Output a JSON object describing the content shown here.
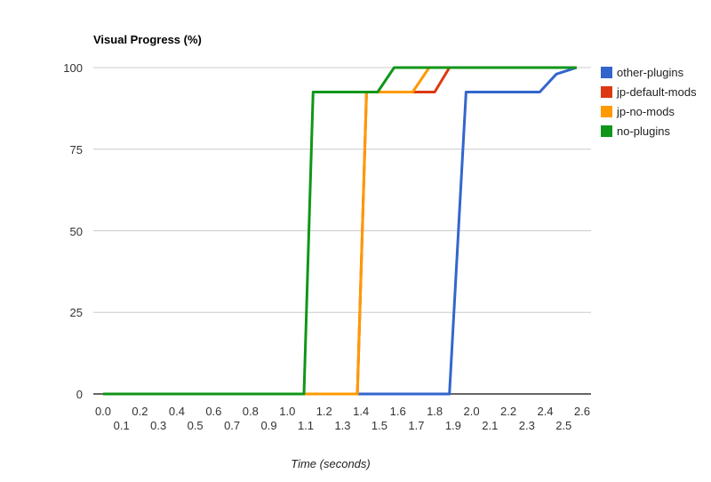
{
  "chart_data": {
    "type": "line",
    "title": "Visual Progress (%)",
    "xlabel": "Time (seconds)",
    "ylabel": "",
    "xlim": [
      0,
      2.6
    ],
    "ylim": [
      0,
      100
    ],
    "yticks": [
      0,
      25,
      50,
      75,
      100
    ],
    "xticks": [
      "0.0",
      "0.1",
      "0.2",
      "0.3",
      "0.4",
      "0.5",
      "0.6",
      "0.7",
      "0.8",
      "0.9",
      "1.0",
      "1.1",
      "1.2",
      "1.3",
      "1.4",
      "1.5",
      "1.6",
      "1.7",
      "1.8",
      "1.9",
      "2.0",
      "2.1",
      "2.2",
      "2.3",
      "2.4",
      "2.5",
      "2.6"
    ],
    "grid": "horizontal",
    "grid_color": "#CCCCCC",
    "axis_color": "#333333",
    "text_color": "#333333",
    "legend_position": "right",
    "series": [
      {
        "name": "other-plugins",
        "color": "#3366CC",
        "points": [
          [
            0,
            0
          ],
          [
            1.88,
            0
          ],
          [
            1.97,
            92.5
          ],
          [
            2.37,
            92.5
          ],
          [
            2.46,
            98
          ],
          [
            2.57,
            100
          ]
        ]
      },
      {
        "name": "jp-default-mods",
        "color": "#DC3912",
        "points": [
          [
            0,
            0
          ],
          [
            1.38,
            0
          ],
          [
            1.43,
            92.5
          ],
          [
            1.8,
            92.5
          ],
          [
            1.88,
            100
          ],
          [
            2.57,
            100
          ]
        ]
      },
      {
        "name": "jp-no-mods",
        "color": "#FF9900",
        "points": [
          [
            0,
            0
          ],
          [
            1.38,
            0
          ],
          [
            1.43,
            92.5
          ],
          [
            1.68,
            92.5
          ],
          [
            1.77,
            100
          ],
          [
            2.57,
            100
          ]
        ]
      },
      {
        "name": "no-plugins",
        "color": "#109618",
        "points": [
          [
            0,
            0
          ],
          [
            1.09,
            0
          ],
          [
            1.14,
            92.5
          ],
          [
            1.49,
            92.5
          ],
          [
            1.58,
            100
          ],
          [
            2.57,
            100
          ]
        ]
      }
    ]
  }
}
